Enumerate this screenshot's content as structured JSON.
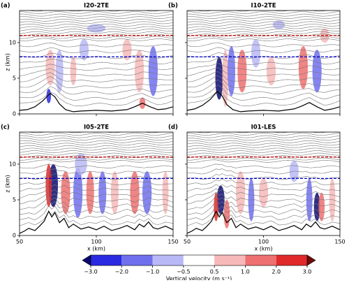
{
  "chart_data": [
    {
      "type": "contour",
      "panel_label": "(a)",
      "title": "I20-2TE",
      "ylabel": "z (km)",
      "xlim": [
        50,
        150
      ],
      "xticks": [
        50,
        100,
        150
      ],
      "ylim": [
        0,
        14.5
      ],
      "yticks": [
        0,
        5,
        10
      ],
      "lines": [
        {
          "value": 8,
          "color": "#0000cc"
        },
        {
          "value": 11,
          "color": "#cc0000"
        }
      ],
      "terrain": {
        "x": [
          50,
          55,
          60,
          65,
          70,
          73,
          76,
          80,
          85,
          90,
          100,
          110,
          120,
          125,
          130,
          135,
          140,
          145,
          150
        ],
        "values": [
          0.5,
          0.6,
          1.0,
          1.8,
          2.9,
          2.4,
          1.4,
          0.6,
          0.3,
          0.4,
          0.5,
          0.4,
          0.6,
          1.0,
          1.5,
          1.0,
          0.6,
          0.7,
          1.0
        ]
      }
    },
    {
      "type": "contour",
      "panel_label": "(b)",
      "title": "I10-2TE",
      "xlim": [
        50,
        150
      ],
      "xticks": [
        50,
        100,
        150
      ],
      "ylim": [
        0,
        14.5
      ],
      "yticks": [
        0,
        5,
        10
      ],
      "lines": [
        {
          "value": 8,
          "color": "#0000cc"
        },
        {
          "value": 11,
          "color": "#cc0000"
        }
      ],
      "terrain": {
        "x": [
          50,
          55,
          60,
          65,
          70,
          73,
          76,
          80,
          85,
          90,
          100,
          110,
          120,
          125,
          130,
          135,
          140,
          145,
          150
        ],
        "values": [
          0.5,
          0.7,
          1.2,
          2.0,
          3.2,
          2.5,
          1.3,
          0.6,
          0.3,
          0.4,
          0.5,
          0.4,
          0.7,
          1.1,
          1.6,
          1.0,
          0.5,
          0.7,
          1.0
        ]
      }
    },
    {
      "type": "contour",
      "panel_label": "(c)",
      "title": "I05-2TE",
      "ylabel": "z (km)",
      "xlabel": "x (km)",
      "xlim": [
        50,
        150
      ],
      "xticks": [
        50,
        100,
        150
      ],
      "ylim": [
        0,
        14.5
      ],
      "yticks": [
        0,
        5,
        10
      ],
      "lines": [
        {
          "value": 8,
          "color": "#0000cc"
        },
        {
          "value": 11,
          "color": "#cc0000"
        }
      ],
      "terrain": {
        "x": [
          50,
          53,
          56,
          60,
          63,
          66,
          69,
          71,
          73,
          76,
          79,
          82,
          85,
          90,
          95,
          100,
          105,
          110,
          115,
          120,
          125,
          128,
          131,
          134,
          137,
          140,
          145,
          150
        ],
        "values": [
          0.3,
          0.6,
          1.0,
          0.7,
          1.3,
          2.0,
          3.4,
          2.6,
          3.2,
          1.8,
          2.4,
          1.1,
          1.6,
          0.9,
          1.2,
          0.8,
          1.3,
          0.7,
          1.0,
          1.4,
          0.8,
          1.6,
          1.2,
          1.9,
          1.1,
          0.9,
          1.3,
          0.8
        ]
      }
    },
    {
      "type": "contour",
      "panel_label": "(d)",
      "title": "I01-LES",
      "xlabel": "x (km)",
      "xlim": [
        50,
        150
      ],
      "xticks": [
        50,
        100,
        150
      ],
      "ylim": [
        0,
        14.5
      ],
      "yticks": [
        0,
        5,
        10
      ],
      "lines": [
        {
          "value": 8,
          "color": "#0000cc"
        },
        {
          "value": 11,
          "color": "#cc0000"
        }
      ],
      "terrain": {
        "x": [
          50,
          53,
          56,
          60,
          63,
          66,
          69,
          71,
          73,
          76,
          79,
          82,
          85,
          90,
          95,
          100,
          105,
          110,
          115,
          120,
          125,
          128,
          131,
          134,
          137,
          140,
          145,
          150
        ],
        "values": [
          0.3,
          0.6,
          1.0,
          0.7,
          1.3,
          2.0,
          3.4,
          2.6,
          3.2,
          1.8,
          2.4,
          1.1,
          1.6,
          0.9,
          1.2,
          0.8,
          1.3,
          0.7,
          1.0,
          1.4,
          0.8,
          1.6,
          1.2,
          1.9,
          1.1,
          0.9,
          1.3,
          0.8
        ]
      }
    }
  ],
  "colorbar": {
    "label": "Vertical velocity (m s⁻¹)",
    "ticks": [
      {
        "value": -3,
        "label": "−3.0"
      },
      {
        "value": -2,
        "label": "−2.0"
      },
      {
        "value": -1,
        "label": "−1.0"
      },
      {
        "value": -0.5,
        "label": "−0.5"
      },
      {
        "value": 0.5,
        "label": "0.5"
      },
      {
        "value": 1,
        "label": "1.0"
      },
      {
        "value": 2,
        "label": "2.0"
      },
      {
        "value": 3,
        "label": "3.0"
      }
    ],
    "colors": [
      "#0a0a6e",
      "#2a2ae0",
      "#7070ee",
      "#b8b8f6",
      "#ffffff",
      "#f6b8b8",
      "#ee7070",
      "#e02a2a",
      "#6e0a0a"
    ]
  }
}
